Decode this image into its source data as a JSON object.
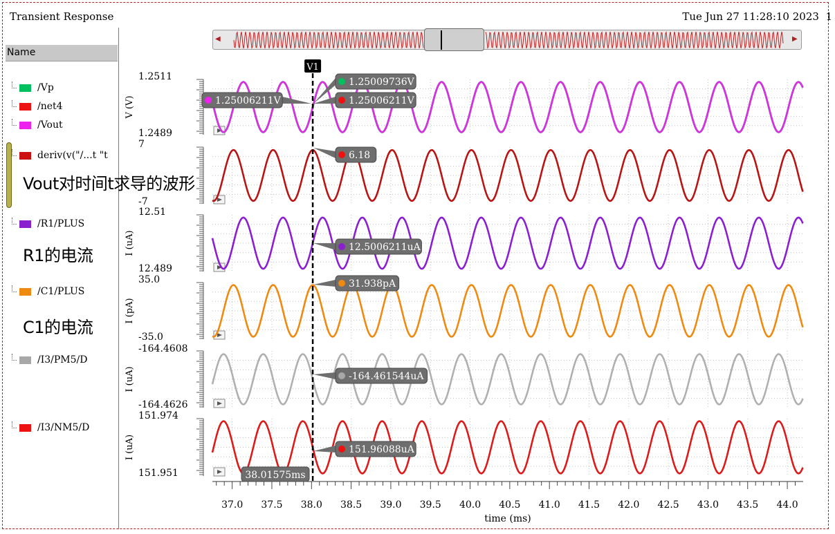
{
  "window": {
    "title": "Transient Response",
    "timestamp": "Tue Jun 27 11:28:10 2023",
    "timestamp_tail": "1"
  },
  "sidebar": {
    "header": "Name",
    "signals": [
      {
        "name": "/Vp",
        "color": "#00c060"
      },
      {
        "name": "/net4",
        "color": "#ee1111"
      },
      {
        "name": "/Vout",
        "color": "#ee22ee"
      },
      {
        "name": "deriv(v(\"/...t \"t",
        "color": "#cc1111"
      },
      {
        "name": "/R1/PLUS",
        "color": "#8a1fd0"
      },
      {
        "name": "/C1/PLUS",
        "color": "#ef8a10"
      },
      {
        "name": "/I3/PM5/D",
        "color": "#a8a8a8"
      },
      {
        "name": "/I3/NM5/D",
        "color": "#ee1111"
      }
    ],
    "annotations": {
      "deriv": "Vout对时间t求导的波形",
      "r1": "R1的电流",
      "c1": "C1的电流"
    }
  },
  "cursor": {
    "label": "V1",
    "time_ms": 38.01575,
    "time_label": "38.01575ms"
  },
  "chart_data": {
    "type": "line",
    "xlabel": "time (ms)",
    "xlim": [
      36.75,
      44.2
    ],
    "x_ticks": [
      "37.0",
      "37.5",
      "38.0",
      "38.5",
      "39.0",
      "39.5",
      "40.0",
      "40.5",
      "41.0",
      "41.5",
      "42.0",
      "42.5",
      "43.0",
      "43.5",
      "44.0"
    ],
    "period_ms": 0.5,
    "grid": true,
    "strips": [
      {
        "ylabel": "V (V)",
        "ylim": [
          1.2489,
          1.2511
        ],
        "y_top_label": "1.2511",
        "y_bottom_label": "1.2489",
        "series": [
          {
            "name": "/Vp",
            "color": "#3fc8b0",
            "mean": 1.25,
            "amplitude": 0.001,
            "phase": "sin"
          },
          {
            "name": "/Vout",
            "color": "#e02be0",
            "mean": 1.25,
            "amplitude": 0.001,
            "phase": "sin"
          }
        ],
        "markers": [
          {
            "label": "1.25006211V",
            "color": "#ee22ee",
            "side": "left"
          },
          {
            "label": "1.25009736V",
            "color": "#00c060",
            "side": "right"
          },
          {
            "label": "1.25006211V",
            "color": "#ee1111",
            "side": "right"
          }
        ]
      },
      {
        "ylabel": "",
        "ylim": [
          -7,
          7
        ],
        "y_top_label": "7",
        "y_bottom_label": "-7",
        "series": [
          {
            "name": "deriv(v(\"/...t \"t",
            "color": "#b81414",
            "mean": 0,
            "amplitude": 6.3,
            "phase": "cos"
          }
        ],
        "markers": [
          {
            "label": "6.18",
            "color": "#ee1111",
            "side": "right"
          }
        ]
      },
      {
        "ylabel": "I (uA)",
        "ylim": [
          12.489,
          12.51
        ],
        "y_top_label": "12.51",
        "y_bottom_label": "12.489",
        "series": [
          {
            "name": "/R1/PLUS",
            "color": "#8a1fd0",
            "mean": 12.4995,
            "amplitude": 0.0095,
            "phase": "sin"
          }
        ],
        "markers": [
          {
            "label": "12.5006211uA",
            "color": "#8a1fd0",
            "side": "right"
          }
        ]
      },
      {
        "ylabel": "I (pA)",
        "ylim": [
          -35,
          35
        ],
        "y_top_label": "35.0",
        "y_bottom_label": "-35.0",
        "series": [
          {
            "name": "/C1/PLUS",
            "color": "#ef8a10",
            "mean": 0,
            "amplitude": 32,
            "phase": "cos"
          }
        ],
        "markers": [
          {
            "label": "31.938pA",
            "color": "#ef8a10",
            "side": "right"
          }
        ]
      },
      {
        "ylabel": "I (uA)",
        "ylim": [
          -164.4626,
          -164.4608
        ],
        "y_top_label": "-164.4608",
        "y_bottom_label": "-164.4626",
        "series": [
          {
            "name": "/I3/PM5/D",
            "color": "#b0b0b0",
            "mean": -164.4617,
            "amplitude": 0.0008,
            "phase": "-sin"
          }
        ],
        "markers": [
          {
            "label": "-164.461544uA",
            "color": "#a8a8a8",
            "side": "right"
          }
        ]
      },
      {
        "ylabel": "I (uA)",
        "ylim": [
          151.951,
          151.974
        ],
        "y_top_label": "151.974",
        "y_bottom_label": "151.951",
        "series": [
          {
            "name": "/I3/NM5/D",
            "color": "#dd1a1a",
            "mean": 151.9625,
            "amplitude": 0.0105,
            "phase": "-sin"
          }
        ],
        "markers": [
          {
            "label": "151.96088uA",
            "color": "#ee1111",
            "side": "right"
          }
        ]
      }
    ]
  }
}
